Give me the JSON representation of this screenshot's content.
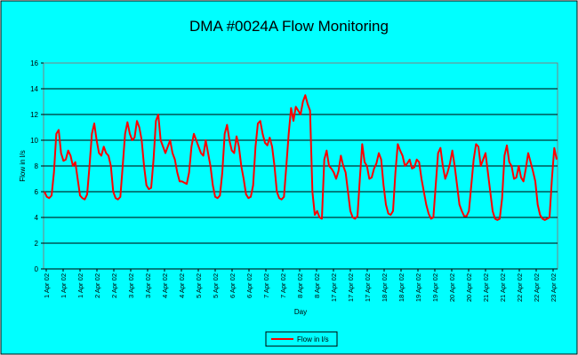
{
  "chart_data": {
    "type": "line",
    "title": "DMA #0024A Flow Monitoring",
    "xlabel": "Day",
    "ylabel": "Flow in l/s",
    "ylim": [
      0,
      16
    ],
    "yticks": [
      0,
      2,
      4,
      6,
      8,
      10,
      12,
      14,
      16
    ],
    "grid": true,
    "legend_position": "bottom",
    "x_tick_labels": [
      "1 Apr 02",
      "1 Apr 02",
      "1 Apr 02",
      "2 Apr 02",
      "2 Apr 02",
      "3 Apr 02",
      "3 Apr 02",
      "4 Apr 02",
      "4 Apr 02",
      "5 Apr 02",
      "5 Apr 02",
      "6 Apr 02",
      "6 Apr 02",
      "7 Apr 02",
      "7 Apr 02",
      "8 Apr 02",
      "8 Apr 02",
      "17 Apr 02",
      "17 Apr 02",
      "17 Apr 02",
      "18 Apr 02",
      "18 Apr 02",
      "19 Apr 02",
      "19 Apr 02",
      "20 Apr 02",
      "20 Apr 02",
      "21 Apr 02",
      "21 Apr 02",
      "22 Apr 02",
      "22 Apr 02",
      "23 Apr 02"
    ],
    "series": [
      {
        "name": "Flow in l/s",
        "color": "#ff0000",
        "values": [
          6.0,
          5.6,
          5.5,
          5.7,
          7.5,
          10.5,
          10.8,
          9.0,
          8.4,
          8.5,
          9.2,
          8.8,
          8.0,
          8.3,
          7.0,
          5.7,
          5.5,
          5.4,
          5.8,
          8.0,
          10.5,
          11.3,
          10.0,
          9.0,
          8.8,
          9.5,
          9.0,
          8.8,
          8.0,
          6.0,
          5.5,
          5.4,
          5.6,
          8.0,
          10.5,
          11.4,
          10.5,
          10.0,
          10.2,
          11.5,
          11.0,
          10.0,
          8.0,
          6.5,
          6.2,
          6.3,
          8.5,
          11.5,
          12.0,
          10.0,
          9.5,
          9.0,
          9.5,
          10.0,
          9.0,
          8.5,
          7.5,
          6.8,
          6.8,
          6.7,
          6.6,
          7.5,
          9.5,
          10.5,
          10.0,
          9.5,
          9.0,
          8.8,
          10.0,
          9.0,
          8.0,
          6.5,
          5.6,
          5.5,
          5.7,
          7.5,
          10.5,
          11.2,
          10.0,
          9.2,
          9.0,
          10.3,
          9.5,
          8.0,
          7.0,
          5.8,
          5.5,
          5.6,
          6.5,
          9.5,
          11.3,
          11.5,
          10.5,
          9.8,
          9.6,
          10.2,
          9.5,
          8.0,
          6.0,
          5.5,
          5.4,
          5.6,
          8.0,
          10.5,
          12.5,
          11.5,
          12.6,
          12.3,
          12.0,
          13.0,
          13.5,
          12.8,
          12.3,
          6.0,
          4.2,
          4.5,
          4.0,
          3.9,
          8.5,
          9.2,
          8.0,
          7.8,
          7.5,
          7.0,
          7.6,
          8.8,
          8.0,
          7.5,
          6.0,
          4.5,
          4.0,
          3.9,
          4.1,
          7.0,
          9.7,
          8.3,
          8.0,
          7.0,
          7.1,
          7.8,
          8.2,
          9.0,
          8.5,
          6.5,
          5.0,
          4.3,
          4.2,
          4.5,
          7.5,
          9.7,
          9.2,
          8.8,
          8.0,
          8.2,
          8.5,
          7.8,
          7.9,
          8.5,
          8.3,
          7.0,
          6.0,
          5.0,
          4.3,
          3.9,
          4.0,
          6.5,
          9.0,
          9.4,
          8.0,
          7.0,
          7.5,
          8.2,
          9.2,
          8.0,
          6.5,
          5.0,
          4.5,
          4.1,
          4.1,
          4.5,
          6.5,
          8.5,
          9.7,
          9.5,
          8.0,
          8.5,
          9.0,
          7.5,
          6.0,
          4.5,
          3.9,
          3.8,
          3.9,
          5.5,
          8.8,
          9.6,
          8.3,
          8.0,
          7.0,
          7.1,
          8.0,
          7.1,
          6.8,
          7.8,
          9.0,
          8.3,
          7.6,
          6.8,
          5.0,
          4.2,
          3.9,
          3.8,
          3.9,
          4.0,
          7.0,
          9.4,
          8.5
        ]
      }
    ]
  }
}
